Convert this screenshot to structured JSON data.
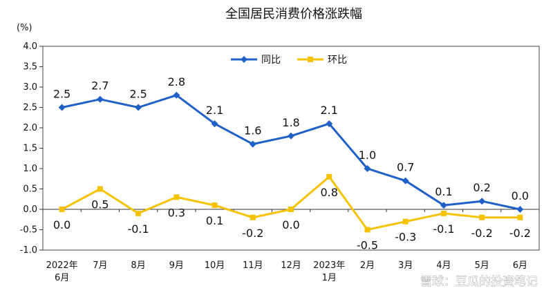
{
  "chart_data": {
    "type": "line",
    "title": "全国居民消费价格涨跌幅",
    "unit_label": "(%)",
    "ylim": [
      -1.0,
      4.0
    ],
    "yticks": [
      "4.0",
      "3.5",
      "3.0",
      "2.5",
      "2.0",
      "1.5",
      "1.0",
      "0.5",
      "0.0",
      "-0.5",
      "-1.0"
    ],
    "ytick_values": [
      4.0,
      3.5,
      3.0,
      2.5,
      2.0,
      1.5,
      1.0,
      0.5,
      0.0,
      -0.5,
      -1.0
    ],
    "categories": [
      [
        "2022年",
        "6月"
      ],
      [
        "7月"
      ],
      [
        "8月"
      ],
      [
        "9月"
      ],
      [
        "10月"
      ],
      [
        "11月"
      ],
      [
        "12月"
      ],
      [
        "2023年",
        "1月"
      ],
      [
        "2月"
      ],
      [
        "3月"
      ],
      [
        "4月"
      ],
      [
        "5月"
      ],
      [
        "6月"
      ]
    ],
    "legend_position": "top-center",
    "series": [
      {
        "name": "同比",
        "color": "#1F5FC8",
        "marker": "diamond",
        "values": [
          2.5,
          2.7,
          2.5,
          2.8,
          2.1,
          1.6,
          1.8,
          2.1,
          1.0,
          0.7,
          0.1,
          0.2,
          0.0
        ],
        "labels": [
          "2.5",
          "2.7",
          "2.5",
          "2.8",
          "2.1",
          "1.6",
          "1.8",
          "2.1",
          "1.0",
          "0.7",
          "0.1",
          "0.2",
          "0.0"
        ]
      },
      {
        "name": "环比",
        "color": "#F5C200",
        "marker": "square",
        "values": [
          0.0,
          0.5,
          -0.1,
          0.3,
          0.1,
          -0.2,
          0.0,
          0.8,
          -0.5,
          -0.3,
          -0.1,
          -0.2,
          -0.2
        ],
        "labels": [
          "0.0",
          "0.5",
          "-0.1",
          "0.3",
          "0.1",
          "-0.2",
          "0.0",
          "0.8",
          "-0.5",
          "-0.3",
          "-0.1",
          "-0.2",
          "-0.2"
        ]
      }
    ]
  },
  "watermark": "雪球：豆瓜的投资笔记"
}
